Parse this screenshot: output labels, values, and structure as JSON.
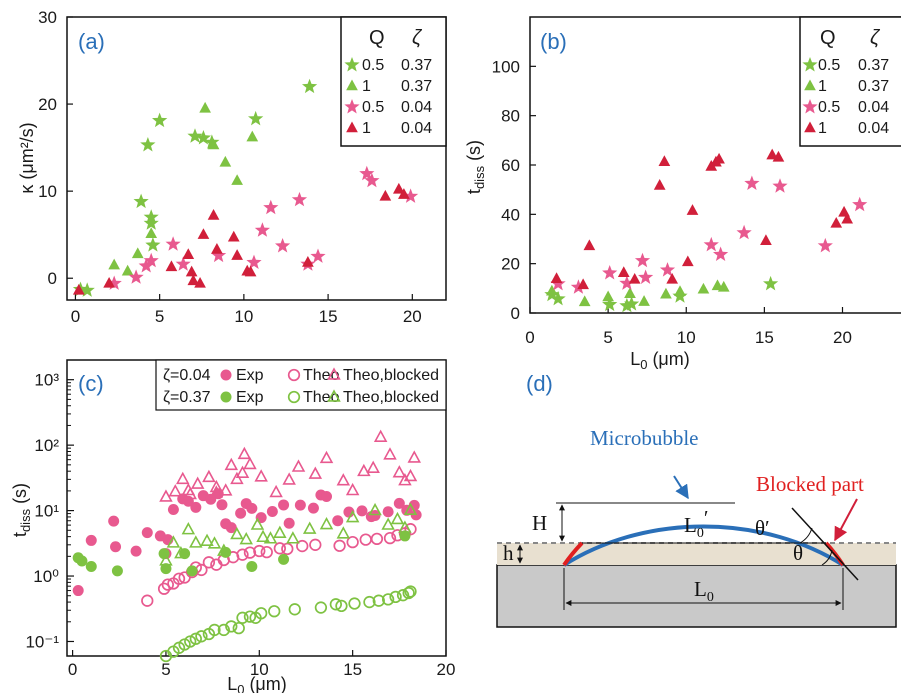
{
  "colors": {
    "pink": "#e8598f",
    "green": "#7ec242",
    "red": "#d11f3a",
    "blue": "#2a6fb8",
    "substrate": "#c9c9c9",
    "liquid": "#e8e0d0"
  },
  "chart_data": [
    {
      "panel": "(a)",
      "type": "scatter",
      "ylabel": "κ (μm²/s)",
      "xlim": [
        -0.5,
        22
      ],
      "ylim": [
        -2.5,
        30
      ],
      "xticks": [
        0,
        5,
        10,
        15,
        20
      ],
      "yticks": [
        0,
        10,
        20,
        30
      ],
      "legend": {
        "headers": [
          "Q",
          "ζ"
        ],
        "position": "top-right"
      },
      "series": [
        {
          "Q": "0.5",
          "zeta": "0.37",
          "marker": "star",
          "color": "#7ec242",
          "x": [
            0.3,
            0.7,
            3.9,
            4.3,
            4.5,
            4.5,
            4.6,
            5.0,
            7.1,
            7.6,
            8.1,
            10.7,
            13.9
          ],
          "y": [
            -1.3,
            -1.4,
            8.8,
            15.3,
            6.3,
            7.0,
            3.8,
            18.1,
            16.3,
            16.1,
            15.6,
            18.3,
            22.0
          ]
        },
        {
          "Q": "1",
          "zeta": "0.37",
          "marker": "triangle",
          "color": "#7ec242",
          "x": [
            2.3,
            3.1,
            3.7,
            4.5,
            7.7,
            8.2,
            8.9,
            9.6,
            10.5
          ],
          "y": [
            1.5,
            0.8,
            2.8,
            5.1,
            19.5,
            15.3,
            13.3,
            11.2,
            16.2
          ]
        },
        {
          "Q": "0.5",
          "zeta": "0.04",
          "marker": "star",
          "color": "#e8598f",
          "x": [
            2.3,
            3.6,
            4.2,
            4.5,
            5.8,
            6.4,
            8.5,
            10.6,
            11.1,
            11.6,
            12.3,
            13.3,
            13.8,
            14.4,
            17.3,
            17.6,
            19.9
          ],
          "y": [
            -0.6,
            0.1,
            1.4,
            2.0,
            3.9,
            1.6,
            2.6,
            1.8,
            5.5,
            8.1,
            3.7,
            9.0,
            1.6,
            2.5,
            12.0,
            11.2,
            9.4
          ]
        },
        {
          "Q": "1",
          "zeta": "0.04",
          "marker": "triangle",
          "color": "#d11f3a",
          "x": [
            0.2,
            2.0,
            5.7,
            6.7,
            6.9,
            7.0,
            7.4,
            7.6,
            8.2,
            8.4,
            9.4,
            9.6,
            10.2,
            10.4,
            13.8,
            18.4,
            19.2,
            19.5
          ],
          "y": [
            -1.4,
            -0.6,
            1.3,
            2.7,
            0.7,
            -0.3,
            -0.6,
            5.0,
            7.2,
            3.3,
            4.7,
            2.6,
            0.8,
            0.7,
            1.8,
            9.4,
            10.2,
            9.6
          ]
        }
      ]
    },
    {
      "panel": "(b)",
      "type": "scatter",
      "xlabel": "L₀ (μm)",
      "ylabel": "t_diss (s)",
      "xlim": [
        0,
        24
      ],
      "ylim": [
        0,
        120
      ],
      "xticks": [
        0,
        5,
        10,
        15,
        20
      ],
      "yticks": [
        0,
        20,
        40,
        60,
        80,
        100
      ],
      "legend": {
        "headers": [
          "Q",
          "ζ"
        ],
        "position": "top-right"
      },
      "series": [
        {
          "Q": "0.5",
          "zeta": "0.37",
          "marker": "star",
          "color": "#7ec242",
          "x": [
            1.4,
            1.8,
            5.1,
            6.2,
            6.5,
            9.6,
            15.4
          ],
          "y": [
            7.4,
            5.7,
            3.4,
            2.9,
            3.6,
            6.8,
            11.8
          ]
        },
        {
          "Q": "1",
          "zeta": "0.37",
          "marker": "triangle",
          "color": "#7ec242",
          "x": [
            1.4,
            3.5,
            5.0,
            6.4,
            7.3,
            8.7,
            9.6,
            11.1,
            12.0,
            12.4
          ],
          "y": [
            8.8,
            4.5,
            6.5,
            7.8,
            4.6,
            7.6,
            8.6,
            9.6,
            11.0,
            10.4
          ]
        },
        {
          "Q": "0.5",
          "zeta": "0.04",
          "marker": "star",
          "color": "#e8598f",
          "x": [
            1.8,
            3.1,
            5.1,
            6.2,
            7.2,
            7.4,
            8.8,
            11.6,
            12.2,
            13.7,
            14.2,
            16.0,
            18.9,
            21.1
          ],
          "y": [
            11.8,
            10.4,
            16.2,
            12.0,
            21.2,
            14.4,
            17.4,
            27.6,
            23.7,
            32.5,
            52.5,
            51.4,
            27.2,
            43.9
          ]
        },
        {
          "Q": "1",
          "zeta": "0.04",
          "marker": "triangle",
          "color": "#d11f3a",
          "x": [
            1.7,
            3.4,
            3.8,
            6.0,
            6.7,
            8.3,
            8.6,
            9.1,
            10.1,
            10.4,
            11.6,
            11.9,
            12.1,
            15.1,
            15.5,
            15.9,
            19.6,
            20.1,
            20.3
          ],
          "y": [
            13.9,
            11.4,
            27.2,
            16.3,
            13.6,
            51.7,
            61.3,
            13.6,
            20.7,
            41.5,
            59.4,
            61.1,
            62.3,
            29.3,
            64.0,
            63.1,
            36.3,
            40.8,
            38.0
          ]
        }
      ]
    },
    {
      "panel": "(c)",
      "type": "scatter",
      "xlabel": "L₀ (μm)",
      "ylabel": "t_diss (s)",
      "yscale": "log",
      "xlim": [
        -0.3,
        20
      ],
      "ylim": [
        0.06,
        2000
      ],
      "xticks": [
        0,
        5,
        10,
        15,
        20
      ],
      "yticks": [
        "10⁻¹",
        "10⁰",
        "10¹",
        "10²",
        "10³"
      ],
      "legend": {
        "rows": [
          {
            "zeta": "ζ=0.04",
            "labels": [
              "Exp",
              "Theo",
              "Theo,blocked"
            ]
          },
          {
            "zeta": "ζ=0.37",
            "labels": [
              "Exp",
              "Theo",
              "Theo,blocked"
            ]
          }
        ],
        "position": "top-right"
      },
      "series": [
        {
          "zeta": "0.04",
          "kind": "Exp",
          "marker": "filled-circle",
          "color": "#e8598f",
          "x": [
            0.3,
            1.0,
            2.2,
            2.3,
            3.4,
            4.0,
            4.7,
            5.0,
            5.1,
            5.4,
            5.9,
            6.2,
            6.6,
            7.0,
            7.4,
            7.8,
            8.0,
            8.2,
            8.5,
            9.0,
            9.3,
            9.6,
            10.1,
            10.7,
            11.3,
            11.6,
            12.2,
            12.9,
            13.3,
            13.6,
            14.2,
            14.8,
            15.5,
            16.0,
            16.2,
            16.9,
            17.5,
            17.9,
            18.3,
            18.4
          ],
          "y": [
            0.6,
            3.5,
            6.9,
            2.8,
            2.4,
            4.6,
            4.1,
            2.2,
            3.6,
            10.4,
            15.1,
            13.9,
            11.2,
            16.9,
            14.9,
            18.1,
            12.3,
            6.3,
            5.5,
            9.1,
            12.8,
            10.8,
            7.8,
            9.7,
            12.2,
            6.4,
            12.1,
            10.9,
            17.3,
            16.4,
            7.0,
            9.5,
            9.9,
            8.1,
            8.4,
            9.6,
            12.9,
            10.1,
            12.0,
            8.6
          ]
        },
        {
          "zeta": "0.04",
          "kind": "Theo",
          "marker": "open-circle",
          "color": "#e8598f",
          "x": [
            4.0,
            4.9,
            5.1,
            5.4,
            5.7,
            6.0,
            6.4,
            6.6,
            6.9,
            7.3,
            7.7,
            8.1,
            8.6,
            9.1,
            9.5,
            10.0,
            10.4,
            11.1,
            11.5,
            12.3,
            13.0,
            14.3,
            15.0,
            15.7,
            16.3,
            17.0,
            17.4,
            17.8,
            18.1
          ],
          "y": [
            0.42,
            0.64,
            0.74,
            0.77,
            0.91,
            0.95,
            1.15,
            1.35,
            1.24,
            1.62,
            1.49,
            1.76,
            1.94,
            2.12,
            2.28,
            2.41,
            2.32,
            2.65,
            2.6,
            2.87,
            3.0,
            2.9,
            3.3,
            3.6,
            3.7,
            3.8,
            4.2,
            4.5,
            5.2
          ]
        },
        {
          "zeta": "0.04",
          "kind": "Theo,blocked",
          "marker": "open-triangle",
          "color": "#e8598f",
          "x": [
            5.0,
            5.5,
            5.9,
            6.2,
            6.3,
            6.7,
            7.3,
            7.7,
            7.7,
            8.2,
            8.5,
            8.8,
            9.1,
            9.2,
            9.5,
            10.1,
            10.9,
            11.6,
            12.1,
            13.0,
            13.6,
            14.5,
            15.0,
            15.6,
            16.1,
            16.5,
            17.0,
            17.5,
            17.8,
            18.1,
            18.3
          ],
          "y": [
            16.1,
            19.4,
            30.0,
            20.2,
            17.6,
            25.3,
            32.1,
            22.5,
            18.6,
            20.0,
            49.0,
            30.0,
            37.2,
            72.1,
            50.6,
            32.7,
            18.9,
            29.3,
            46.2,
            36.0,
            62.6,
            28.5,
            20.2,
            39.6,
            44.3,
            132.0,
            71.0,
            37.8,
            28.6,
            33.1,
            63.5
          ]
        },
        {
          "zeta": "0.37",
          "kind": "Exp",
          "marker": "filled-circle",
          "color": "#7ec242",
          "x": [
            0.3,
            0.5,
            1.0,
            2.4,
            4.9,
            5.0,
            6.0,
            6.4,
            8.2,
            9.6,
            11.3,
            17.8
          ],
          "y": [
            1.9,
            1.7,
            1.4,
            1.2,
            2.2,
            1.3,
            2.2,
            1.2,
            2.3,
            1.4,
            1.8,
            4.1
          ]
        },
        {
          "zeta": "0.37",
          "kind": "Theo",
          "marker": "open-circle",
          "color": "#7ec242",
          "x": [
            5.0,
            5.4,
            5.7,
            6.0,
            6.3,
            6.6,
            6.9,
            7.3,
            7.6,
            8.1,
            8.5,
            8.9,
            9.1,
            9.5,
            9.8,
            10.1,
            10.8,
            11.9,
            13.3,
            14.1,
            14.4,
            15.1,
            15.9,
            16.4,
            16.9,
            17.3,
            17.7,
            18.0,
            18.1
          ],
          "y": [
            0.06,
            0.07,
            0.08,
            0.09,
            0.1,
            0.11,
            0.12,
            0.13,
            0.15,
            0.15,
            0.17,
            0.16,
            0.23,
            0.24,
            0.23,
            0.27,
            0.29,
            0.31,
            0.33,
            0.37,
            0.35,
            0.38,
            0.4,
            0.42,
            0.44,
            0.48,
            0.51,
            0.55,
            0.58
          ]
        },
        {
          "zeta": "0.37",
          "kind": "Theo,blocked",
          "marker": "open-triangle",
          "color": "#7ec242",
          "x": [
            5.0,
            5.4,
            5.8,
            6.2,
            6.6,
            7.2,
            7.6,
            8.1,
            8.8,
            9.3,
            9.9,
            10.2,
            10.6,
            11.1,
            11.8,
            12.7,
            13.6,
            14.5,
            15.0,
            16.2,
            16.9,
            17.4,
            17.8,
            18.1
          ],
          "y": [
            1.7,
            3.2,
            2.2,
            5.1,
            3.2,
            3.4,
            3.1,
            2.4,
            4.3,
            3.6,
            6.0,
            3.9,
            3.7,
            4.5,
            3.7,
            5.2,
            6.1,
            4.4,
            7.8,
            10.0,
            6.0,
            7.3,
            5.4,
            10.1
          ]
        }
      ]
    }
  ],
  "panels": {
    "a": {
      "label": "(a)",
      "ylabel": "κ (μm²/s)",
      "legQ": "Q",
      "legZ": "ζ",
      "legend": [
        {
          "q": "0.5",
          "z": "0.37"
        },
        {
          "q": "1",
          "z": "0.37"
        },
        {
          "q": "0.5",
          "z": "0.04"
        },
        {
          "q": "1",
          "z": "0.04"
        }
      ]
    },
    "b": {
      "label": "(b)",
      "ylabel": "t",
      "ylabel_sub": "diss",
      "ylabel_unit": " (s)",
      "xlabel": "L",
      "xlabel_sub": "0",
      "xlabel_unit": " (μm)",
      "legQ": "Q",
      "legZ": "ζ",
      "legend": [
        {
          "q": "0.5",
          "z": "0.37"
        },
        {
          "q": "1",
          "z": "0.37"
        },
        {
          "q": "0.5",
          "z": "0.04"
        },
        {
          "q": "1",
          "z": "0.04"
        }
      ]
    },
    "c": {
      "label": "(c)",
      "ylabel": "t",
      "ylabel_sub": "diss",
      "ylabel_unit": " (s)",
      "xlabel": "L",
      "xlabel_sub": "0",
      "xlabel_unit": " (μm)",
      "legend_z1": "ζ=0.04",
      "legend_z2": "ζ=0.37",
      "leg_exp": "Exp",
      "leg_theo": "Theo",
      "leg_blocked": "Theo,blocked"
    },
    "d": {
      "label": "(d)",
      "bubble": "Microbubble",
      "blocked": "Blocked part",
      "H": "H",
      "h": "h",
      "L0p": "L",
      "L0p_sub": "0",
      "L0p_prime": "′",
      "L0": "L",
      "L0_sub": "0",
      "theta_p": "θ′",
      "theta": "θ"
    }
  }
}
